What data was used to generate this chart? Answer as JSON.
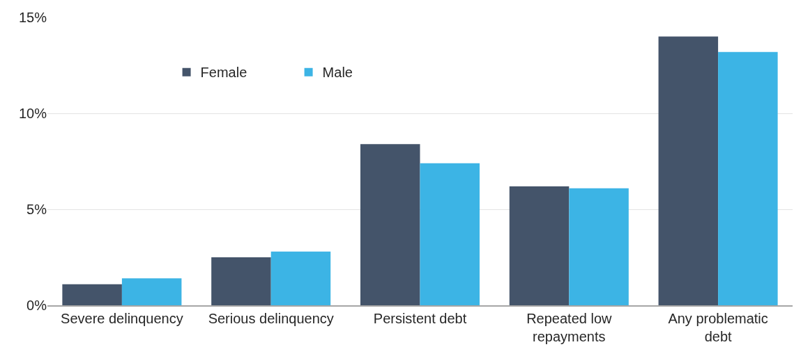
{
  "chart_data": {
    "type": "bar",
    "categories": [
      "Severe delinquency",
      "Serious delinquency",
      "Persistent debt",
      "Repeated low repayments",
      "Any problematic debt"
    ],
    "series": [
      {
        "name": "Female",
        "color": "#44546a",
        "values": [
          1.1,
          2.5,
          8.4,
          6.2,
          14.0
        ]
      },
      {
        "name": "Male",
        "color": "#3cb4e5",
        "values": [
          1.4,
          2.8,
          7.4,
          6.1,
          13.2
        ]
      }
    ],
    "ylim": [
      0,
      15
    ],
    "yticks": [
      {
        "value": 0,
        "label": "0%"
      },
      {
        "value": 5,
        "label": "5%"
      },
      {
        "value": 10,
        "label": "10%"
      },
      {
        "value": 15,
        "label": "15%"
      }
    ],
    "grid": "y",
    "legend": "top left"
  }
}
